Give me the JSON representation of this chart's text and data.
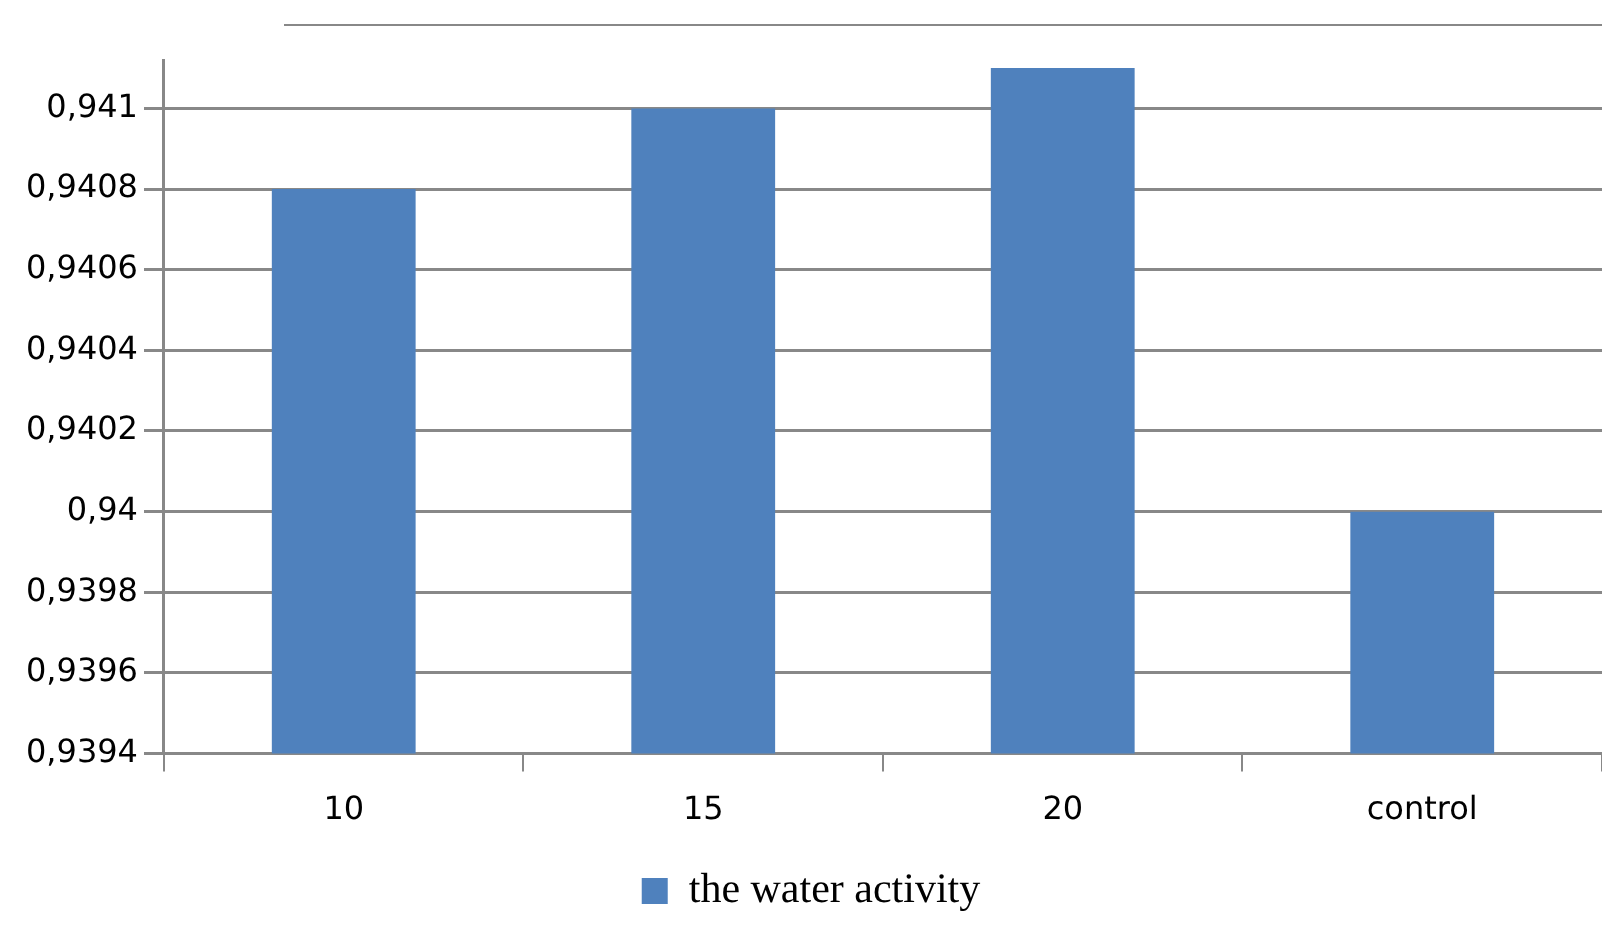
{
  "chart_data": {
    "type": "bar",
    "categories": [
      "10",
      "15",
      "20",
      "control"
    ],
    "series": [
      {
        "name": "the water activity",
        "color": "#4f81bd",
        "values": [
          0.9408,
          0.941,
          0.9411,
          0.94
        ]
      }
    ],
    "ylim": [
      0.9394,
      0.94112
    ],
    "yticks": [
      {
        "value": 0.9394,
        "label": "0,9394"
      },
      {
        "value": 0.9396,
        "label": "0,9396"
      },
      {
        "value": 0.9398,
        "label": "0,9398"
      },
      {
        "value": 0.94,
        "label": "0,94"
      },
      {
        "value": 0.9402,
        "label": "0,9402"
      },
      {
        "value": 0.9404,
        "label": "0,9404"
      },
      {
        "value": 0.9406,
        "label": "0,9406"
      },
      {
        "value": 0.9408,
        "label": "0,9408"
      },
      {
        "value": 0.941,
        "label": "0,941"
      }
    ],
    "grid": "y",
    "legend": "bottom"
  }
}
